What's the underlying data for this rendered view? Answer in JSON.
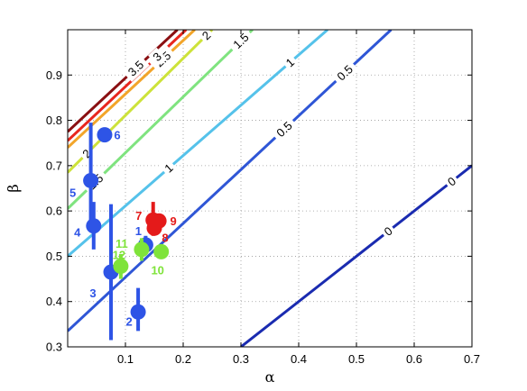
{
  "chart_data": {
    "type": "scatter",
    "title": "",
    "xlabel": "α",
    "ylabel": "β",
    "xlim": [
      0.0,
      0.7
    ],
    "ylim": [
      0.3,
      1.0
    ],
    "grid": true,
    "x_ticks": [
      {
        "value": 0.1,
        "label": "0.1"
      },
      {
        "value": 0.2,
        "label": "0.2"
      },
      {
        "value": 0.3,
        "label": "0.3"
      },
      {
        "value": 0.4,
        "label": "0.4"
      },
      {
        "value": 0.5,
        "label": "0.5"
      },
      {
        "value": 0.6,
        "label": "0.6"
      },
      {
        "value": 0.7,
        "label": "0.7"
      }
    ],
    "y_ticks": [
      {
        "value": 0.3,
        "label": "0.3"
      },
      {
        "value": 0.4,
        "label": "0.4"
      },
      {
        "value": 0.5,
        "label": "0.5"
      },
      {
        "value": 0.6,
        "label": "0.6"
      },
      {
        "value": 0.7,
        "label": "0.7"
      },
      {
        "value": 0.8,
        "label": "0.8"
      },
      {
        "value": 0.9,
        "label": "0.9"
      }
    ],
    "contours": [
      {
        "level": 0,
        "label": "0",
        "color": "#1a2bb0",
        "p1": [
          0.3,
          0.3
        ],
        "p2": [
          0.7,
          0.7
        ],
        "labels_at": [
          0.555,
          0.665
        ]
      },
      {
        "level": 0.5,
        "label": "0.5",
        "color": "#2f56d6",
        "p1": [
          0.0,
          0.335
        ],
        "p2": [
          0.56,
          1.0
        ],
        "labels_at": [
          0.375,
          0.48
        ]
      },
      {
        "level": 1,
        "label": "1",
        "color": "#55c2ea",
        "p1": [
          0.0,
          0.5
        ],
        "p2": [
          0.45,
          1.0
        ],
        "labels_at": [
          0.175,
          0.385
        ]
      },
      {
        "level": 1.5,
        "label": "1.5",
        "color": "#7fe37f",
        "p1": [
          0.0,
          0.605
        ],
        "p2": [
          0.32,
          1.0
        ],
        "labels_at": [
          0.048,
          0.3
        ]
      },
      {
        "level": 2,
        "label": "2",
        "color": "#cde23a",
        "p1": [
          0.0,
          0.685
        ],
        "p2": [
          0.25,
          1.0
        ],
        "labels_at": [
          0.033,
          0.24
        ]
      },
      {
        "level": 2.5,
        "label": "2.5",
        "color": "#f2a52a",
        "p1": [
          0.0,
          0.74
        ],
        "p2": [
          0.22,
          1.0
        ],
        "labels_at": [
          0.165
        ]
      },
      {
        "level": 3,
        "label": "3",
        "color": "#e8261e",
        "p1": [
          0.0,
          0.755
        ],
        "p2": [
          0.205,
          1.0
        ],
        "labels_at": [
          0.155
        ]
      },
      {
        "level": 3.5,
        "label": "3.5",
        "color": "#8a0f12",
        "p1": [
          0.0,
          0.775
        ],
        "p2": [
          0.19,
          1.0
        ],
        "labels_at": [
          0.118
        ]
      }
    ],
    "series": [
      {
        "color": "#2e54e6",
        "points": [
          {
            "id": "1",
            "x": 0.135,
            "y": 0.525,
            "err": [
              0.505,
              0.545
            ],
            "label_dx": -8,
            "label_dy": -11
          },
          {
            "id": "2",
            "x": 0.122,
            "y": 0.377,
            "err": [
              0.335,
              0.43
            ],
            "label_dx": -10,
            "label_dy": 15
          },
          {
            "id": "3",
            "x": 0.075,
            "y": 0.465,
            "err": [
              0.315,
              0.615
            ],
            "label_dx": -20,
            "label_dy": 28
          },
          {
            "id": "4",
            "x": 0.045,
            "y": 0.567,
            "err": [
              0.515,
              0.62
            ],
            "label_dx": -18,
            "label_dy": 12
          },
          {
            "id": "5",
            "x": 0.04,
            "y": 0.667,
            "err": [
              0.575,
              0.795
            ],
            "label_dx": -20,
            "label_dy": 18
          },
          {
            "id": "6",
            "x": 0.064,
            "y": 0.768,
            "err": null,
            "label_dx": 14,
            "label_dy": 5
          }
        ]
      },
      {
        "color": "#e41a1a",
        "points": [
          {
            "id": "7",
            "x": 0.148,
            "y": 0.58,
            "err": [
              0.545,
              0.62
            ],
            "label_dx": -16,
            "label_dy": 0
          },
          {
            "id": "8",
            "x": 0.15,
            "y": 0.562,
            "err": null,
            "label_dx": 12,
            "label_dy": 15
          },
          {
            "id": "9",
            "x": 0.158,
            "y": 0.578,
            "err": null,
            "label_dx": 16,
            "label_dy": 5
          }
        ]
      },
      {
        "color": "#7fe33a",
        "points": [
          {
            "id": "10",
            "x": 0.162,
            "y": 0.51,
            "err": null,
            "label_dx": -4,
            "label_dy": 25
          },
          {
            "id": "11",
            "x": 0.128,
            "y": 0.515,
            "err": [
              0.49,
              0.54
            ],
            "label_dx": -22,
            "label_dy": -2
          },
          {
            "id": "12",
            "x": 0.092,
            "y": 0.478,
            "err": [
              0.45,
              0.505
            ],
            "label_dx": -2,
            "label_dy": -8
          }
        ]
      }
    ]
  }
}
